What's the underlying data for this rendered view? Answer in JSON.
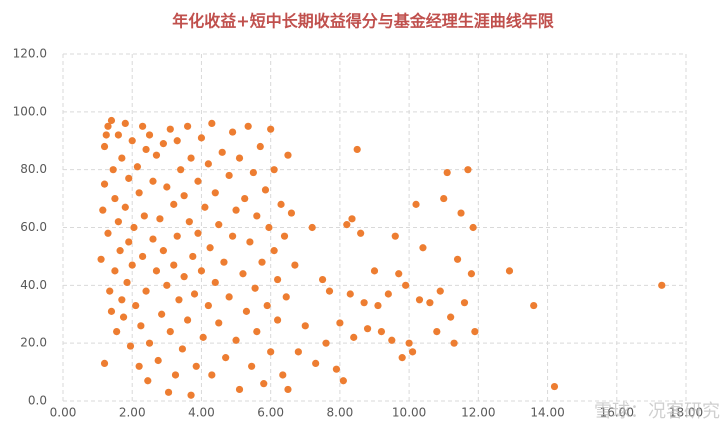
{
  "chart_data": {
    "type": "scatter",
    "title": "年化收益+短中长期收益得分与基金经理生涯曲线年限",
    "color": "#ed7d31",
    "grid": true,
    "watermark": "雪球：况客研究",
    "xlim": [
      0,
      18
    ],
    "ylim": [
      0,
      120
    ],
    "xticks": [
      {
        "value": 0,
        "label": "0.00"
      },
      {
        "value": 2,
        "label": "2.00"
      },
      {
        "value": 4,
        "label": "4.00"
      },
      {
        "value": 6,
        "label": "6.00"
      },
      {
        "value": 8,
        "label": "8.00"
      },
      {
        "value": 10,
        "label": "10.00"
      },
      {
        "value": 12,
        "label": "12.00"
      },
      {
        "value": 14,
        "label": "14.00"
      },
      {
        "value": 16,
        "label": "16.00"
      },
      {
        "value": 18,
        "label": "18.00"
      }
    ],
    "yticks": [
      {
        "value": 0,
        "label": "0.0"
      },
      {
        "value": 20,
        "label": "20.0"
      },
      {
        "value": 40,
        "label": "40.0"
      },
      {
        "value": 60,
        "label": "60.0"
      },
      {
        "value": 80,
        "label": "80.0"
      },
      {
        "value": 100,
        "label": "100.0"
      },
      {
        "value": 120,
        "label": "120.0"
      }
    ],
    "x": [
      1.1,
      1.15,
      1.2,
      1.2,
      1.25,
      1.2,
      1.3,
      1.3,
      1.35,
      1.4,
      1.4,
      1.45,
      1.5,
      1.5,
      1.55,
      1.6,
      1.6,
      1.65,
      1.7,
      1.7,
      1.75,
      1.8,
      1.8,
      1.85,
      1.9,
      1.9,
      1.95,
      2.0,
      2.0,
      2.05,
      2.1,
      2.15,
      2.2,
      2.2,
      2.25,
      2.3,
      2.3,
      2.35,
      2.4,
      2.4,
      2.45,
      2.5,
      2.5,
      2.6,
      2.6,
      2.7,
      2.7,
      2.75,
      2.8,
      2.85,
      2.9,
      2.9,
      3.0,
      3.0,
      3.05,
      3.1,
      3.1,
      3.2,
      3.2,
      3.25,
      3.3,
      3.3,
      3.35,
      3.4,
      3.45,
      3.5,
      3.5,
      3.6,
      3.6,
      3.65,
      3.7,
      3.7,
      3.75,
      3.8,
      3.85,
      3.9,
      3.9,
      4.0,
      4.0,
      4.05,
      4.1,
      4.2,
      4.2,
      4.25,
      4.3,
      4.3,
      4.4,
      4.4,
      4.5,
      4.5,
      4.6,
      4.65,
      4.7,
      4.8,
      4.8,
      4.9,
      4.9,
      5.0,
      5.0,
      5.1,
      5.1,
      5.2,
      5.25,
      5.3,
      5.35,
      5.4,
      5.45,
      5.5,
      5.55,
      5.6,
      5.6,
      5.7,
      5.75,
      5.8,
      5.85,
      5.9,
      5.95,
      6.0,
      6.0,
      6.1,
      6.1,
      6.2,
      6.2,
      6.3,
      6.35,
      6.4,
      6.45,
      6.5,
      6.5,
      6.6,
      6.7,
      6.8,
      7.0,
      7.2,
      7.3,
      7.5,
      7.6,
      7.7,
      7.9,
      8.0,
      8.1,
      8.2,
      8.3,
      8.35,
      8.4,
      8.5,
      8.6,
      8.7,
      8.8,
      9.0,
      9.1,
      9.2,
      9.4,
      9.5,
      9.6,
      9.7,
      9.8,
      9.9,
      10.0,
      10.1,
      10.2,
      10.3,
      10.4,
      10.6,
      10.8,
      10.9,
      11.0,
      11.1,
      11.2,
      11.3,
      11.4,
      11.5,
      11.6,
      11.7,
      11.8,
      11.85,
      11.9,
      12.9,
      13.6,
      14.2,
      17.3
    ],
    "values": [
      49,
      66,
      75,
      88,
      92,
      13,
      95,
      58,
      38,
      31,
      97,
      80,
      70,
      45,
      24,
      92,
      62,
      52,
      84,
      35,
      29,
      96,
      67,
      41,
      77,
      55,
      19,
      90,
      47,
      60,
      33,
      81,
      72,
      12,
      26,
      95,
      50,
      64,
      87,
      38,
      7,
      92,
      20,
      76,
      56,
      85,
      45,
      14,
      63,
      30,
      89,
      52,
      74,
      40,
      3,
      94,
      24,
      68,
      47,
      9,
      90,
      57,
      35,
      80,
      18,
      71,
      43,
      95,
      28,
      62,
      84,
      2,
      50,
      37,
      12,
      76,
      58,
      91,
      45,
      22,
      67,
      82,
      33,
      53,
      96,
      9,
      72,
      41,
      61,
      27,
      86,
      48,
      15,
      78,
      36,
      93,
      57,
      66,
      21,
      84,
      4,
      44,
      70,
      31,
      95,
      55,
      12,
      79,
      39,
      64,
      24,
      88,
      48,
      6,
      73,
      33,
      60,
      94,
      17,
      52,
      80,
      42,
      28,
      68,
      9,
      57,
      36,
      85,
      4,
      65,
      47,
      17,
      26,
      60,
      13,
      42,
      20,
      38,
      11,
      27,
      7,
      61,
      37,
      63,
      22,
      87,
      58,
      34,
      25,
      45,
      33,
      24,
      37,
      21,
      57,
      44,
      15,
      40,
      20,
      17,
      68,
      35,
      53,
      34,
      24,
      38,
      70,
      79,
      29,
      20,
      49,
      65,
      34,
      80,
      44,
      60,
      24,
      45,
      33,
      5,
      40
    ]
  }
}
